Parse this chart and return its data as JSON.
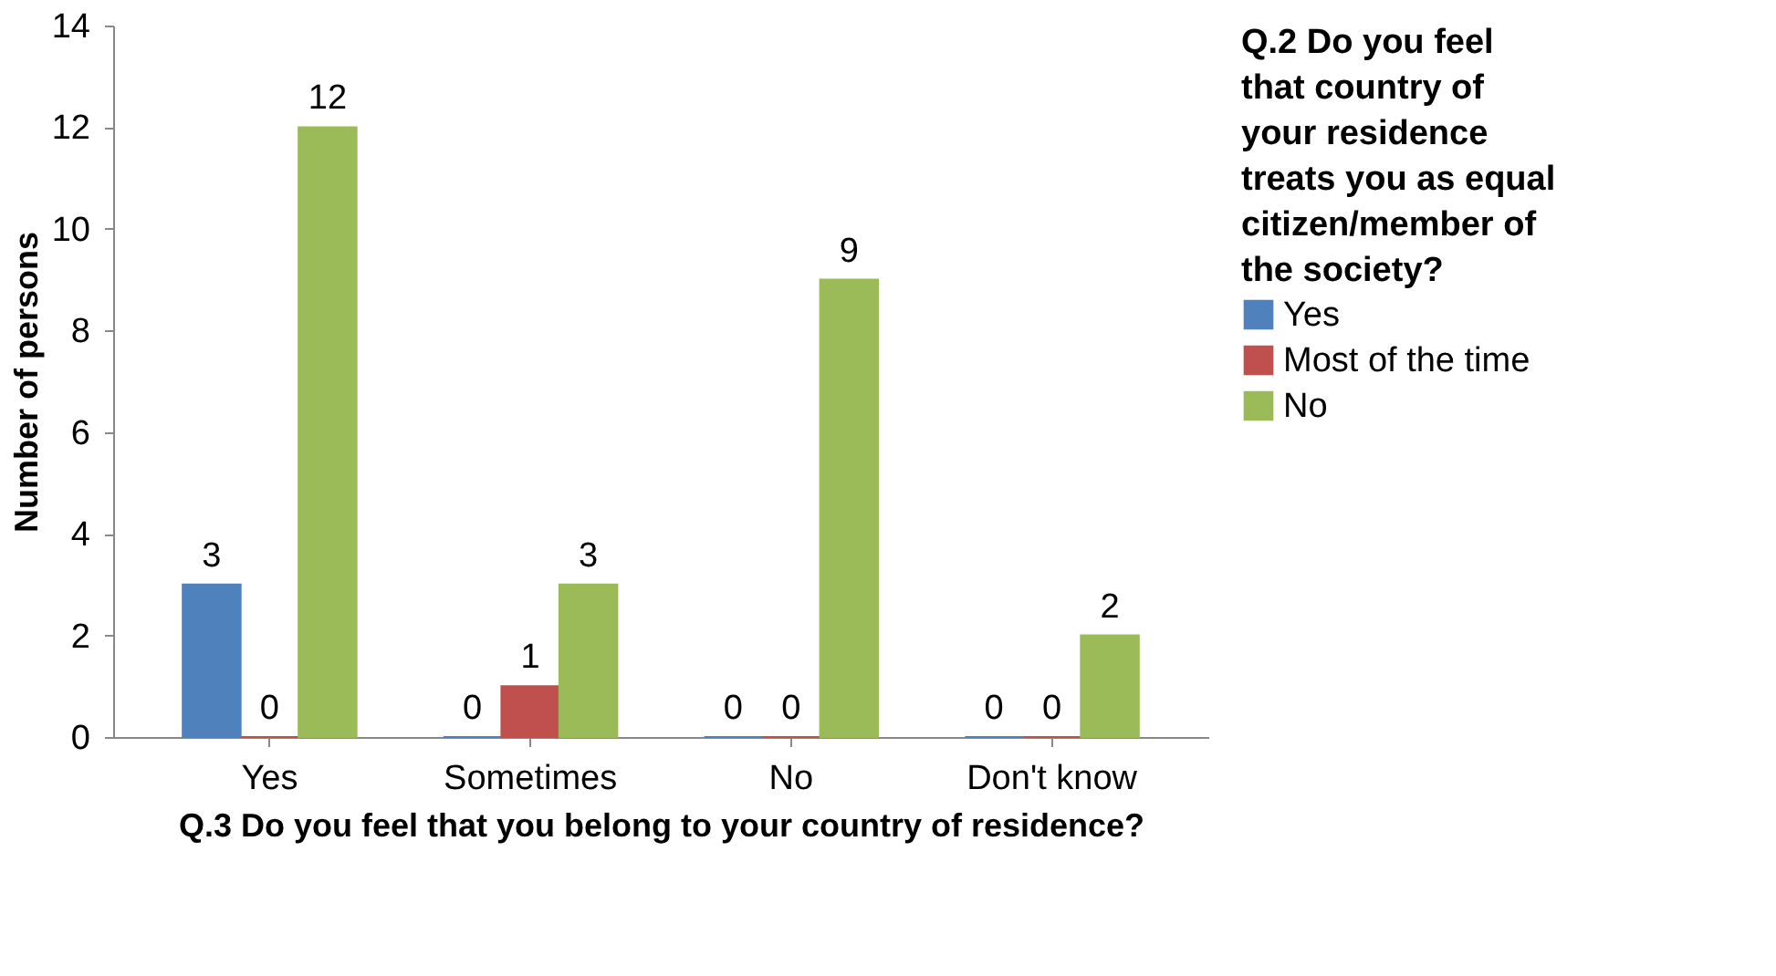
{
  "chart_data": {
    "type": "bar",
    "xlabel": "Q.3 Do you feel that you belong to your country of residence?",
    "ylabel": "Number of persons",
    "legend_title": "Q.2 Do you feel that country of your residence treats you as equal citizen/member of the society?",
    "categories": [
      "Yes",
      "Sometimes",
      "No",
      "Don't know"
    ],
    "series": [
      {
        "name": "Yes",
        "color": "#4f81bd",
        "values": [
          3,
          0,
          0,
          0
        ]
      },
      {
        "name": "Most of the time",
        "color": "#c0504d",
        "values": [
          0,
          1,
          0,
          0
        ]
      },
      {
        "name": "No",
        "color": "#9bbb59",
        "values": [
          12,
          3,
          9,
          2
        ]
      }
    ],
    "ylim": [
      0,
      14
    ],
    "yticks": [
      0,
      2,
      4,
      6,
      8,
      10,
      12,
      14
    ],
    "data_labels": true,
    "grid": false,
    "legend": "right"
  }
}
